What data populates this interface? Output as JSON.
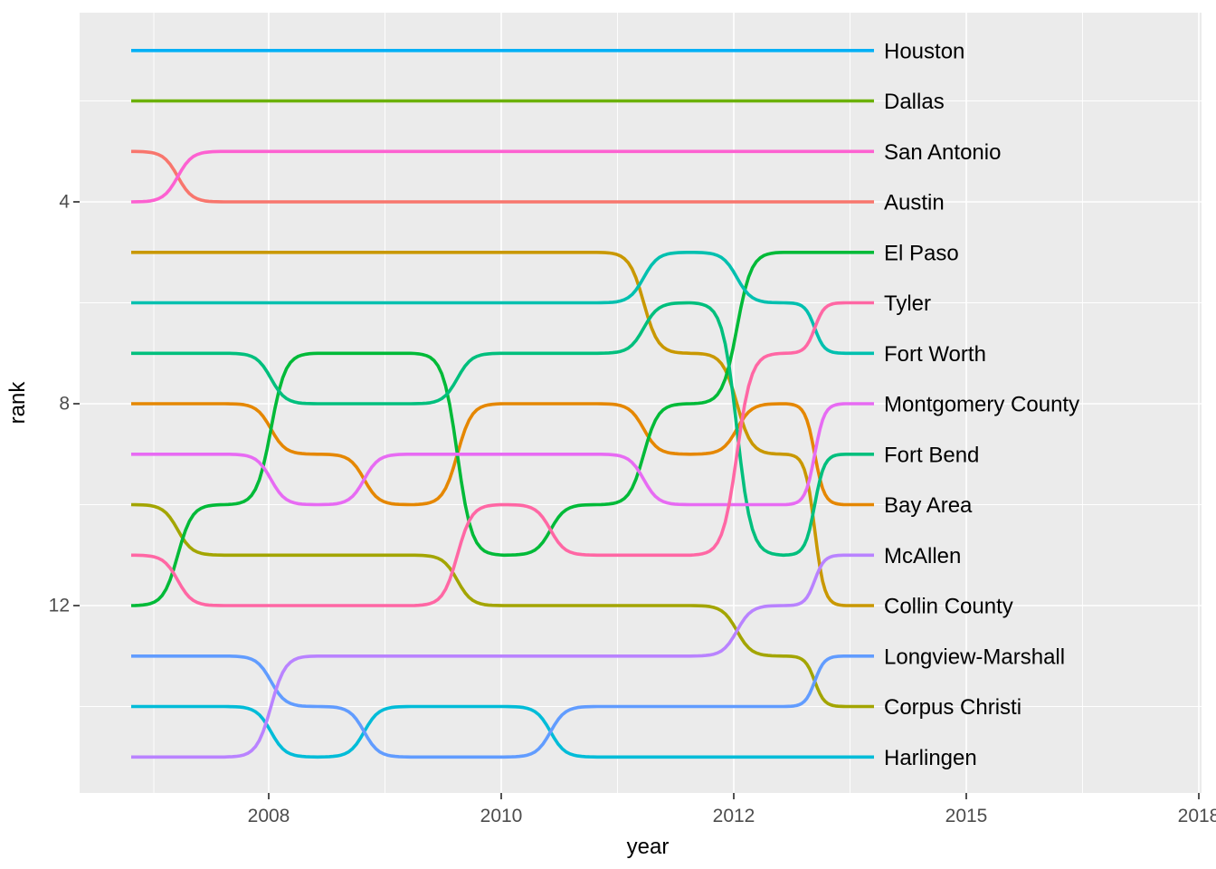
{
  "chart_data": {
    "type": "line",
    "subtype": "bump-rank-chart",
    "title": "",
    "xlabel": "year",
    "ylabel": "rank",
    "x_tick_labels": [
      "2008",
      "2010",
      "2012",
      "2015",
      "2018"
    ],
    "y_tick_labels": [
      "4",
      "8",
      "12"
    ],
    "ylim": [
      1,
      15
    ],
    "grid": "on",
    "legend_position": "labels-at-line-ends",
    "panel_bg": "#EBEBEB",
    "grid_color": "#FFFFFF",
    "time_points": 9,
    "series": [
      {
        "name": "Austin",
        "color": "#F8766D",
        "ranks": [
          3,
          4,
          4,
          4,
          4,
          4,
          4,
          4,
          4
        ],
        "end_rank": 4
      },
      {
        "name": "Bay Area",
        "color": "#E58700",
        "ranks": [
          8,
          8,
          9,
          10,
          8,
          8,
          9,
          8,
          10
        ],
        "end_rank": 10
      },
      {
        "name": "Collin County",
        "color": "#C99800",
        "ranks": [
          5,
          5,
          5,
          5,
          5,
          5,
          7,
          9,
          12
        ],
        "end_rank": 12
      },
      {
        "name": "Corpus Christi",
        "color": "#A3A500",
        "ranks": [
          10,
          11,
          11,
          11,
          12,
          12,
          12,
          13,
          14
        ],
        "end_rank": 14
      },
      {
        "name": "Dallas",
        "color": "#6BB100",
        "ranks": [
          2,
          2,
          2,
          2,
          2,
          2,
          2,
          2,
          2
        ],
        "end_rank": 2
      },
      {
        "name": "El Paso",
        "color": "#00BA38",
        "ranks": [
          12,
          10,
          7,
          7,
          11,
          10,
          8,
          5,
          5
        ],
        "end_rank": 5
      },
      {
        "name": "Fort Bend",
        "color": "#00BF7D",
        "ranks": [
          7,
          7,
          8,
          8,
          7,
          7,
          6,
          11,
          9
        ],
        "end_rank": 9
      },
      {
        "name": "Fort Worth",
        "color": "#00C0AF",
        "ranks": [
          6,
          6,
          6,
          6,
          6,
          6,
          5,
          6,
          7
        ],
        "end_rank": 7
      },
      {
        "name": "Harlingen",
        "color": "#00BCD8",
        "ranks": [
          14,
          14,
          15,
          14,
          14,
          15,
          15,
          15,
          15
        ],
        "end_rank": 15
      },
      {
        "name": "Houston",
        "color": "#00B0F6",
        "ranks": [
          1,
          1,
          1,
          1,
          1,
          1,
          1,
          1,
          1
        ],
        "end_rank": 1
      },
      {
        "name": "Longview-Marshall",
        "color": "#619CFF",
        "ranks": [
          13,
          13,
          14,
          15,
          15,
          14,
          14,
          14,
          13
        ],
        "end_rank": 13
      },
      {
        "name": "McAllen",
        "color": "#B983FF",
        "ranks": [
          15,
          15,
          13,
          13,
          13,
          13,
          13,
          12,
          11
        ],
        "end_rank": 11
      },
      {
        "name": "Montgomery County",
        "color": "#E76BF3",
        "ranks": [
          9,
          9,
          10,
          9,
          9,
          9,
          10,
          10,
          8
        ],
        "end_rank": 8
      },
      {
        "name": "San Antonio",
        "color": "#FD61D1",
        "ranks": [
          4,
          3,
          3,
          3,
          3,
          3,
          3,
          3,
          3
        ],
        "end_rank": 3
      },
      {
        "name": "Tyler",
        "color": "#FF67A4",
        "ranks": [
          11,
          12,
          12,
          12,
          10,
          11,
          11,
          7,
          6
        ],
        "end_rank": 6
      }
    ]
  }
}
